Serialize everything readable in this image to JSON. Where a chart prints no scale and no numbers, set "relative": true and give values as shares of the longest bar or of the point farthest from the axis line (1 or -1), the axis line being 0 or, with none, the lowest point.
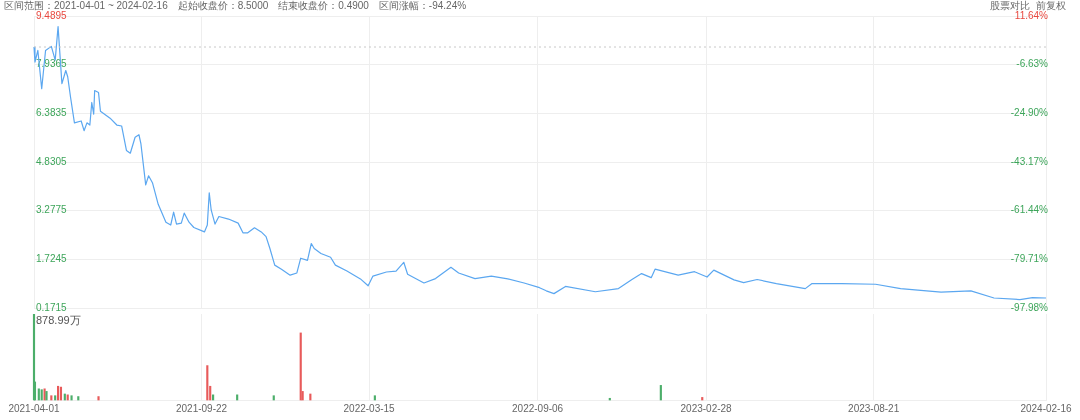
{
  "chart_data": [
    {
      "type": "line",
      "title": "区间范围：2021-04-01 ~ 2024-02-16　起始收盘价：8.5000　结束收盘价：0.4900　区间涨幅：-94.24%",
      "annotations": [
        "股票对比",
        "前复权"
      ],
      "x": [
        "2021-04-01",
        "2021-04-02",
        "2021-04-05",
        "2021-04-09",
        "2021-04-13",
        "2021-04-19",
        "2021-04-23",
        "2021-04-26",
        "2021-04-30",
        "2021-05-04",
        "2021-05-06",
        "2021-05-09",
        "2021-05-13",
        "2021-05-20",
        "2021-05-23",
        "2021-05-26",
        "2021-05-29",
        "2021-05-31",
        "2021-06-02",
        "2021-06-03",
        "2021-06-07",
        "2021-06-09",
        "2021-06-19",
        "2021-06-26",
        "2021-07-01",
        "2021-07-06",
        "2021-07-10",
        "2021-07-15",
        "2021-07-19",
        "2021-07-21",
        "2021-07-26",
        "2021-07-29",
        "2021-08-02",
        "2021-08-08",
        "2021-08-16",
        "2021-08-21",
        "2021-08-24",
        "2021-08-27",
        "2021-09-01",
        "2021-09-04",
        "2021-09-09",
        "2021-09-14",
        "2021-09-25",
        "2021-09-28",
        "2021-09-30",
        "2021-10-02",
        "2021-10-06",
        "2021-10-10",
        "2021-10-20",
        "2021-10-30",
        "2021-11-04",
        "2021-11-09",
        "2021-11-16",
        "2021-11-23",
        "2021-11-28",
        "2021-12-02",
        "2021-12-07",
        "2021-12-14",
        "2021-12-23",
        "2021-12-30",
        "2022-01-03",
        "2022-01-10",
        "2022-01-14",
        "2022-01-17",
        "2022-01-24",
        "2022-02-03",
        "2022-02-08",
        "2022-02-20",
        "2022-03-06",
        "2022-03-14",
        "2022-03-19",
        "2022-04-02",
        "2022-04-12",
        "2022-04-20",
        "2022-04-24",
        "2022-05-11",
        "2022-05-23",
        "2022-06-08",
        "2022-06-16",
        "2022-07-03",
        "2022-07-20",
        "2022-08-06",
        "2022-08-23",
        "2022-09-08",
        "2022-09-15",
        "2022-09-23",
        "2022-10-05",
        "2022-11-05",
        "2022-11-29",
        "2022-12-13",
        "2022-12-23",
        "2023-01-02",
        "2023-01-06",
        "2023-01-30",
        "2023-02-16",
        "2023-03-01",
        "2023-03-08",
        "2023-03-29",
        "2023-04-08",
        "2023-04-22",
        "2023-05-12",
        "2023-06-11",
        "2023-06-18",
        "2023-07-19",
        "2023-08-23",
        "2023-09-18",
        "2023-10-30",
        "2023-11-30",
        "2023-12-24",
        "2024-01-20",
        "2024-02-02",
        "2024-02-16"
      ],
      "series": [
        {
          "color": "#5ba7f0",
          "values": [
            8.5,
            8.02,
            8.39,
            7.17,
            8.39,
            8.52,
            8.08,
            9.15,
            7.33,
            7.75,
            7.55,
            6.89,
            6.08,
            6.14,
            5.83,
            6.08,
            6.01,
            6.73,
            6.36,
            7.11,
            7.05,
            6.45,
            6.23,
            6.01,
            5.98,
            5.2,
            5.11,
            5.62,
            5.7,
            5.42,
            4.1,
            4.39,
            4.17,
            3.48,
            2.91,
            2.82,
            3.23,
            2.85,
            2.88,
            3.2,
            2.91,
            2.74,
            2.6,
            2.82,
            3.85,
            3.3,
            2.85,
            3.09,
            3.01,
            2.88,
            2.57,
            2.57,
            2.73,
            2.6,
            2.45,
            2.07,
            1.54,
            1.41,
            1.22,
            1.29,
            1.76,
            1.69,
            2.23,
            2.07,
            1.91,
            1.79,
            1.54,
            1.35,
            1.1,
            0.88,
            1.19,
            1.32,
            1.35,
            1.63,
            1.25,
            0.97,
            1.11,
            1.47,
            1.29,
            1.11,
            1.19,
            1.1,
            0.97,
            0.82,
            0.72,
            0.63,
            0.86,
            0.69,
            0.79,
            1.08,
            1.27,
            1.14,
            1.41,
            1.22,
            1.33,
            1.16,
            1.38,
            1.07,
            0.98,
            1.08,
            0.95,
            0.79,
            0.95,
            0.95,
            0.93,
            0.79,
            0.68,
            0.72,
            0.49,
            0.44,
            0.5,
            0.49
          ]
        }
      ],
      "xlim": [
        "2021-04-01",
        "2024-02-16"
      ],
      "xticks": [
        "2021-04-01",
        "2021-09-22",
        "2022-03-15",
        "2022-09-06",
        "2023-02-28",
        "2023-08-21",
        "2024-02-16"
      ],
      "ylim": [
        0.1715,
        9.4895
      ],
      "yticks": [
        0.1715,
        1.7245,
        3.2775,
        4.8305,
        6.3835,
        7.9365,
        9.4895
      ],
      "y2lim": [
        -97.98,
        11.64
      ],
      "y2ticks": [
        {
          "value": -97.98,
          "label": "-97.98%"
        },
        {
          "value": -79.71,
          "label": "-79.71%"
        },
        {
          "value": -61.44,
          "label": "-61.44%"
        },
        {
          "value": -43.17,
          "label": "-43.17%"
        },
        {
          "value": -24.9,
          "label": "-24.90%"
        },
        {
          "value": -6.63,
          "label": "-6.63%"
        },
        {
          "value": 11.64,
          "label": "11.64%"
        }
      ],
      "ref_lines": [
        {
          "axis": "y",
          "value": 8.5,
          "color": "#c8c8c8",
          "line_style": "dotted"
        }
      ],
      "tick_labels": "y",
      "grid": true,
      "legend": false,
      "marker": "none"
    },
    {
      "type": "bar",
      "relative": true,
      "annotations": [
        "878.99万"
      ],
      "x": [
        "2021-04-01",
        "2021-04-02",
        "2021-04-06",
        "2021-04-09",
        "2021-04-12",
        "2021-04-14",
        "2021-04-19",
        "2021-04-23",
        "2021-04-26",
        "2021-04-29",
        "2021-05-03",
        "2021-05-06",
        "2021-05-10",
        "2021-05-17",
        "2021-06-07",
        "2021-09-28",
        "2021-10-01",
        "2021-10-04",
        "2021-10-29",
        "2021-12-06",
        "2022-01-03",
        "2022-01-05",
        "2022-01-13",
        "2022-03-21",
        "2022-11-20",
        "2023-01-12",
        "2023-02-24"
      ],
      "series": [
        {
          "values": [
            1.0,
            0.21,
            0.13,
            0.12,
            0.13,
            0.1,
            0.05,
            0.05,
            0.16,
            0.15,
            0.07,
            0.06,
            0.05,
            0.04,
            0.04,
            0.4,
            0.16,
            0.06,
            0.06,
            0.05,
            0.78,
            0.1,
            0.07,
            0.05,
            0.02,
            0.17,
            0.03
          ],
          "colors": [
            "#4cae6a",
            "#4cae6a",
            "#4cae6a",
            "#4cae6a",
            "#e85a5a",
            "#4cae6a",
            "#e85a5a",
            "#4cae6a",
            "#e85a5a",
            "#e85a5a",
            "#4cae6a",
            "#e85a5a",
            "#4cae6a",
            "#4cae6a",
            "#e85a5a",
            "#e85a5a",
            "#e85a5a",
            "#4cae6a",
            "#4cae6a",
            "#4cae6a",
            "#e85a5a",
            "#e85a5a",
            "#e85a5a",
            "#4cae6a",
            "#4cae6a",
            "#4cae6a",
            "#e85a5a"
          ]
        }
      ],
      "xlim": [
        "2021-04-01",
        "2024-02-16"
      ],
      "xticks": [
        "2021-04-01",
        "2021-09-22",
        "2022-03-15",
        "2022-09-06",
        "2023-02-28",
        "2023-08-21",
        "2024-02-16"
      ],
      "tick_labels": "x",
      "grid": "x",
      "legend": false
    }
  ]
}
